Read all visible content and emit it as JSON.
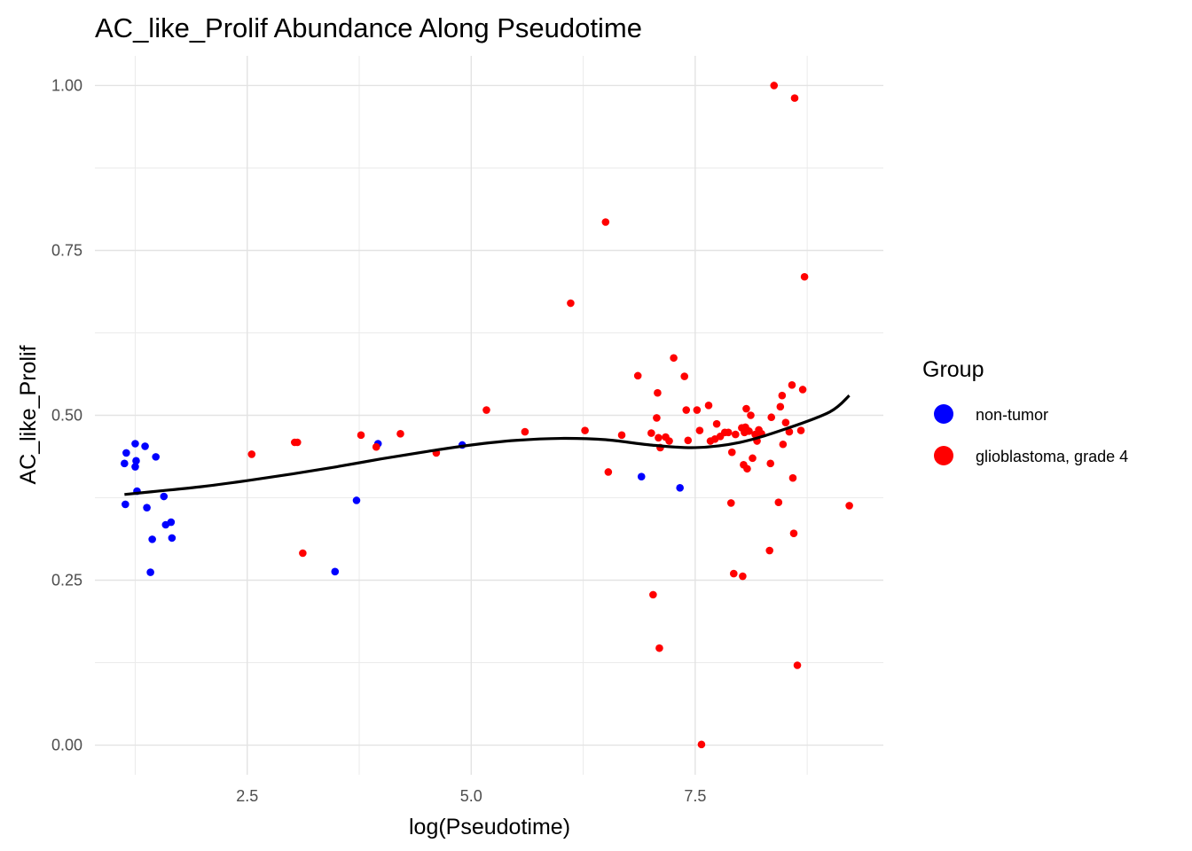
{
  "chart_data": {
    "type": "scatter",
    "title": "AC_like_Prolif Abundance Along Pseudotime",
    "xlabel": "log(Pseudotime)",
    "ylabel": "AC_like_Prolif",
    "xlim": [
      0.8,
      9.6
    ],
    "ylim": [
      -0.045,
      1.045
    ],
    "x_ticks": [
      2.5,
      5.0,
      7.5
    ],
    "x_tick_labels": [
      "2.5",
      "5.0",
      "7.5"
    ],
    "y_ticks": [
      0,
      0.25,
      0.5,
      0.75,
      1.0
    ],
    "y_tick_labels": [
      "0.00",
      "0.25",
      "0.50",
      "0.75",
      "1.00"
    ],
    "grid": true,
    "legend": {
      "title": "Group",
      "position": "right"
    },
    "series": [
      {
        "name": "non-tumor",
        "color": "#0000ff",
        "points": [
          [
            1.13,
            0.427
          ],
          [
            1.15,
            0.443
          ],
          [
            1.14,
            0.365
          ],
          [
            1.25,
            0.457
          ],
          [
            1.26,
            0.431
          ],
          [
            1.25,
            0.422
          ],
          [
            1.27,
            0.385
          ],
          [
            1.36,
            0.453
          ],
          [
            1.38,
            0.36
          ],
          [
            1.42,
            0.262
          ],
          [
            1.44,
            0.312
          ],
          [
            1.48,
            0.437
          ],
          [
            1.57,
            0.377
          ],
          [
            1.59,
            0.334
          ],
          [
            1.65,
            0.338
          ],
          [
            1.66,
            0.314
          ],
          [
            3.48,
            0.263
          ],
          [
            3.72,
            0.371
          ],
          [
            3.96,
            0.457
          ],
          [
            4.9,
            0.455
          ],
          [
            6.9,
            0.407
          ],
          [
            7.33,
            0.39
          ]
        ]
      },
      {
        "name": "glioblastoma, grade 4",
        "color": "#ff0000",
        "points": [
          [
            2.55,
            0.441
          ],
          [
            3.03,
            0.459
          ],
          [
            3.06,
            0.459
          ],
          [
            3.12,
            0.291
          ],
          [
            3.77,
            0.47
          ],
          [
            3.94,
            0.452
          ],
          [
            4.21,
            0.472
          ],
          [
            4.61,
            0.443
          ],
          [
            5.17,
            0.508
          ],
          [
            5.6,
            0.475
          ],
          [
            6.11,
            0.67
          ],
          [
            6.27,
            0.477
          ],
          [
            6.5,
            0.793
          ],
          [
            6.53,
            0.414
          ],
          [
            6.68,
            0.47
          ],
          [
            6.86,
            0.56
          ],
          [
            7.01,
            0.473
          ],
          [
            7.03,
            0.228
          ],
          [
            7.07,
            0.496
          ],
          [
            7.08,
            0.534
          ],
          [
            7.09,
            0.466
          ],
          [
            7.1,
            0.147
          ],
          [
            7.11,
            0.451
          ],
          [
            7.17,
            0.467
          ],
          [
            7.21,
            0.461
          ],
          [
            7.26,
            0.587
          ],
          [
            7.38,
            0.559
          ],
          [
            7.4,
            0.508
          ],
          [
            7.42,
            0.462
          ],
          [
            7.52,
            0.508
          ],
          [
            7.55,
            0.477
          ],
          [
            7.57,
            0.001
          ],
          [
            7.65,
            0.515
          ],
          [
            7.67,
            0.461
          ],
          [
            7.72,
            0.464
          ],
          [
            7.74,
            0.487
          ],
          [
            7.78,
            0.468
          ],
          [
            7.83,
            0.474
          ],
          [
            7.87,
            0.474
          ],
          [
            7.9,
            0.367
          ],
          [
            7.91,
            0.444
          ],
          [
            7.93,
            0.26
          ],
          [
            7.95,
            0.471
          ],
          [
            8.02,
            0.481
          ],
          [
            8.03,
            0.256
          ],
          [
            8.04,
            0.425
          ],
          [
            8.05,
            0.474
          ],
          [
            8.06,
            0.482
          ],
          [
            8.07,
            0.51
          ],
          [
            8.08,
            0.419
          ],
          [
            8.1,
            0.476
          ],
          [
            8.12,
            0.5
          ],
          [
            8.14,
            0.435
          ],
          [
            8.17,
            0.471
          ],
          [
            8.19,
            0.461
          ],
          [
            8.21,
            0.478
          ],
          [
            8.24,
            0.472
          ],
          [
            8.33,
            0.295
          ],
          [
            8.34,
            0.427
          ],
          [
            8.35,
            0.497
          ],
          [
            8.38,
            1.0
          ],
          [
            8.43,
            0.368
          ],
          [
            8.45,
            0.513
          ],
          [
            8.47,
            0.53
          ],
          [
            8.48,
            0.456
          ],
          [
            8.51,
            0.489
          ],
          [
            8.55,
            0.475
          ],
          [
            8.58,
            0.546
          ],
          [
            8.59,
            0.405
          ],
          [
            8.6,
            0.321
          ],
          [
            8.61,
            0.981
          ],
          [
            8.64,
            0.121
          ],
          [
            8.68,
            0.477
          ],
          [
            8.7,
            0.539
          ],
          [
            8.72,
            0.71
          ],
          [
            9.22,
            0.363
          ]
        ]
      }
    ],
    "smooth_line": {
      "color": "#000000",
      "points": [
        [
          1.13,
          0.38
        ],
        [
          1.5,
          0.385
        ],
        [
          2.0,
          0.392
        ],
        [
          2.5,
          0.401
        ],
        [
          3.0,
          0.411
        ],
        [
          3.5,
          0.422
        ],
        [
          4.0,
          0.434
        ],
        [
          4.5,
          0.445
        ],
        [
          5.0,
          0.455
        ],
        [
          5.5,
          0.462
        ],
        [
          6.0,
          0.465
        ],
        [
          6.5,
          0.463
        ],
        [
          7.0,
          0.455
        ],
        [
          7.5,
          0.451
        ],
        [
          8.0,
          0.459
        ],
        [
          8.5,
          0.479
        ],
        [
          9.0,
          0.505
        ],
        [
          9.22,
          0.53
        ]
      ]
    }
  }
}
